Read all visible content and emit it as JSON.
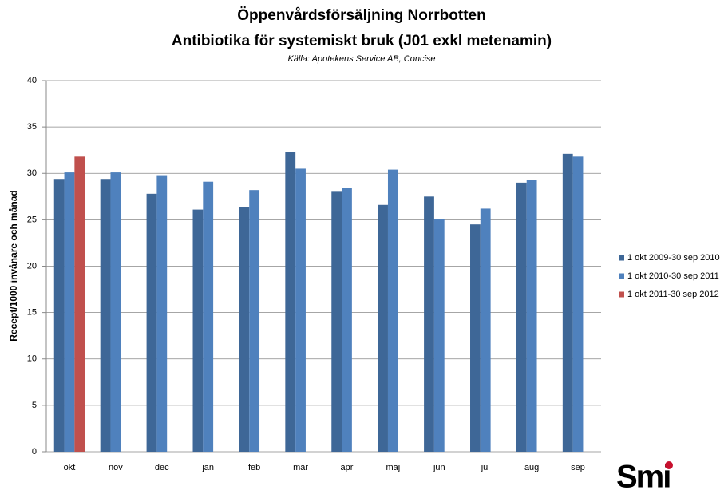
{
  "chart_data": {
    "type": "bar",
    "title": [
      "Öppenvårdsförsäljning Norrbotten",
      "Antibiotika för systemiskt bruk (J01 exkl metenamin)"
    ],
    "subtitle": "Källa: Apotekens Service AB, Concise",
    "y_label": "Recept/1000 invånare och månad",
    "categories": [
      "okt",
      "nov",
      "dec",
      "jan",
      "feb",
      "mar",
      "apr",
      "maj",
      "jun",
      "jul",
      "aug",
      "sep"
    ],
    "series": [
      {
        "name": "1 okt 2009-30 sep 2010",
        "color": "#3e6797",
        "values": [
          29.4,
          29.4,
          27.8,
          26.1,
          26.4,
          32.3,
          28.1,
          26.6,
          27.5,
          24.5,
          29.0,
          32.1
        ]
      },
      {
        "name": "1 okt 2010-30 sep 2011",
        "color": "#4f81bd",
        "values": [
          30.1,
          30.1,
          29.8,
          29.1,
          28.2,
          30.5,
          28.4,
          30.4,
          25.1,
          26.2,
          29.3,
          31.8
        ]
      },
      {
        "name": "1 okt 2011-30 sep 2012",
        "color": "#c0504d",
        "values": [
          31.8,
          null,
          null,
          null,
          null,
          null,
          null,
          null,
          null,
          null,
          null,
          null
        ]
      }
    ],
    "ylim": [
      0,
      40
    ],
    "yticks": [
      0,
      5,
      10,
      15,
      20,
      25,
      30,
      35,
      40
    ],
    "grid": true,
    "legend": "right",
    "logo": "Smi"
  }
}
